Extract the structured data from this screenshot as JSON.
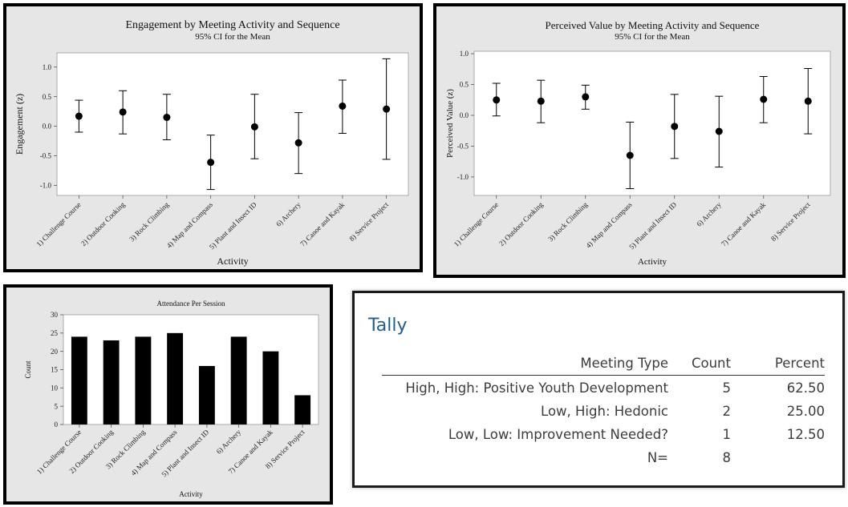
{
  "chart_data": [
    {
      "type": "interval",
      "title": "Engagement by Meeting Activity and Sequence",
      "subtitle": "95% CI for the Mean",
      "xlabel": "Activity",
      "ylabel": "Engagement (z)",
      "categories": [
        "1) Challenge Course",
        "2) Outdoor Cooking",
        "3) Rock Climbing",
        "4) Map and Compass",
        "5) Plant and Insect ID",
        "6) Archery",
        "7) Canoe and Kayak",
        "8) Service Project"
      ],
      "mean": [
        0.17,
        0.24,
        0.15,
        -0.61,
        -0.01,
        -0.28,
        0.34,
        0.29
      ],
      "lower": [
        -0.1,
        -0.13,
        -0.23,
        -1.07,
        -0.55,
        -0.8,
        -0.12,
        -0.56
      ],
      "upper": [
        0.44,
        0.6,
        0.54,
        -0.15,
        0.54,
        0.23,
        0.78,
        1.14
      ],
      "ylim": [
        -1.17,
        1.24
      ],
      "yticks": [
        1.0,
        0.5,
        0.0,
        -0.5,
        -1.0
      ],
      "ytick_labels": [
        "1.0",
        "0.5",
        "0.0",
        "-0.5",
        "-1.0"
      ],
      "grid": false,
      "colors": {
        "panel": "#e6e6e6",
        "plot": "#ffffff",
        "marks": "#000000"
      }
    },
    {
      "type": "interval",
      "title": "Perceived Value by Meeting Activity and Sequence",
      "subtitle": "95% CI for the Mean",
      "xlabel": "Activity",
      "ylabel": "Perceived Value (z)",
      "categories": [
        "1) Challenge Course",
        "2) Outdoor Cooking",
        "3) Rock Climbing",
        "4) Map and Compass",
        "5) Plant and Insect ID",
        "6) Archery",
        "7) Canoe and Kayak",
        "8) Service Project"
      ],
      "mean": [
        0.25,
        0.23,
        0.3,
        -0.65,
        -0.18,
        -0.26,
        0.26,
        0.23
      ],
      "lower": [
        -0.01,
        -0.12,
        0.1,
        -1.19,
        -0.7,
        -0.84,
        -0.12,
        -0.3
      ],
      "upper": [
        0.52,
        0.57,
        0.49,
        -0.11,
        0.34,
        0.31,
        0.63,
        0.76
      ],
      "ylim": [
        -1.3,
        1.04
      ],
      "yticks": [
        1.0,
        0.5,
        0.0,
        -0.5,
        -1.0
      ],
      "ytick_labels": [
        "1.0",
        "0.5",
        "0.0",
        "-0.5",
        "-1.0"
      ],
      "grid": false,
      "colors": {
        "panel": "#e6e6e6",
        "plot": "#ffffff",
        "marks": "#000000"
      }
    },
    {
      "type": "bar",
      "title": "Attendance Per Session",
      "xlabel": "Activity",
      "ylabel": "Count",
      "categories": [
        "1) Challenge Course",
        "2) Outdoor Cooking",
        "3) Rock Climbing",
        "4) Map and Compass",
        "5) Plant and Insect ID",
        "6) Archery",
        "7) Canoe and Kayak",
        "8) Service Project"
      ],
      "values": [
        24,
        23,
        24,
        25,
        16,
        24,
        20,
        8
      ],
      "ylim": [
        0,
        30
      ],
      "yticks": [
        0,
        5,
        10,
        15,
        20,
        25,
        30
      ],
      "ytick_labels": [
        "0",
        "5",
        "10",
        "15",
        "20",
        "25",
        "30"
      ],
      "grid": false,
      "colors": {
        "panel": "#e6e6e6",
        "plot": "#ffffff",
        "bars": "#000000"
      }
    },
    {
      "type": "table",
      "title": "Tally",
      "columns": [
        "Meeting Type",
        "Count",
        "Percent"
      ],
      "rows": [
        {
          "type": "High, High: Positive Youth Development",
          "count": "5",
          "percent": "62.50"
        },
        {
          "type": "Low, High: Hedonic",
          "count": "2",
          "percent": "25.00"
        },
        {
          "type": "Low, Low: Improvement Needed?",
          "count": "1",
          "percent": "12.50"
        }
      ],
      "total_label": "N=",
      "total_count": "8"
    }
  ]
}
